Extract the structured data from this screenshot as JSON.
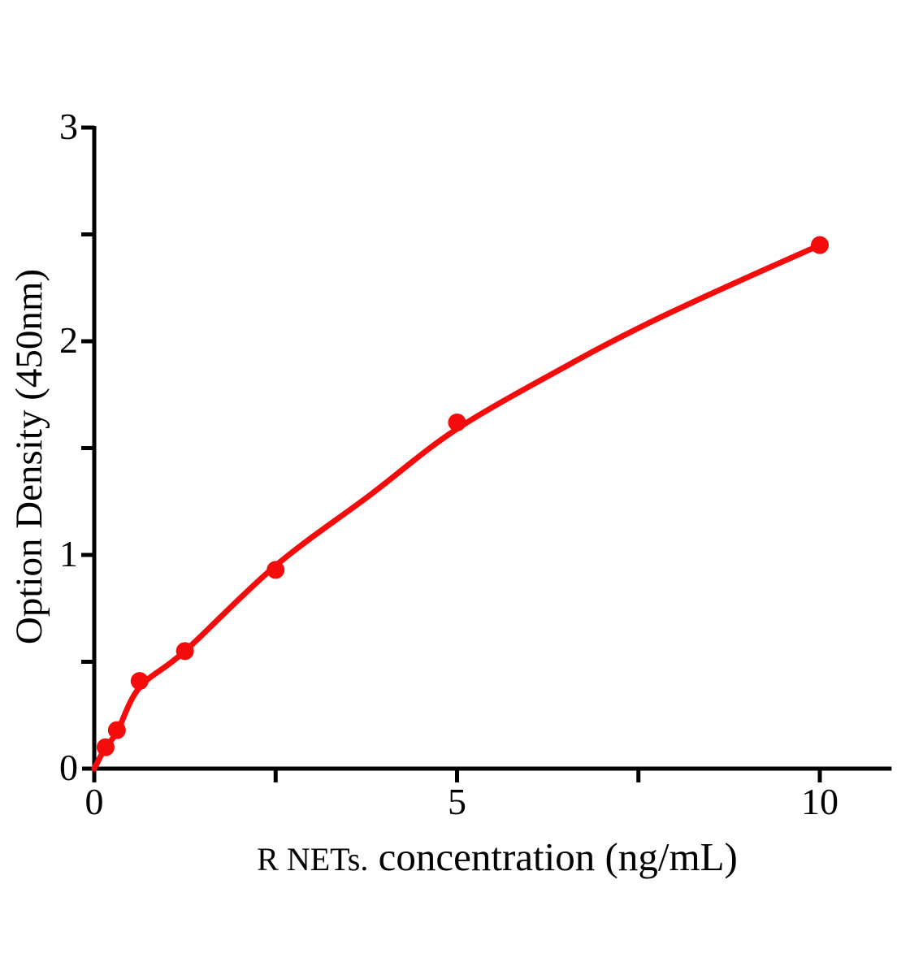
{
  "chart_data": {
    "type": "scatter",
    "title": "",
    "xlabel": "R NETs. concentration（ng/mL）",
    "xlabel_prefix": "R NETs.",
    "xlabel_main": "concentration（ng/mL）",
    "ylabel": "Option Density（450nm）",
    "xlim": [
      0,
      11
    ],
    "ylim": [
      0,
      3
    ],
    "x_ticks": [
      0,
      5,
      10
    ],
    "x_minor_ticks": [
      2.5,
      7.5
    ],
    "y_ticks": [
      0,
      1,
      2,
      3
    ],
    "y_minor_ticks": [
      0.5,
      1.5,
      2.5
    ],
    "grid": false,
    "legend_position": "none",
    "colors": {
      "series": "#f40b0b",
      "axis": "#000000",
      "background": "#ffffff"
    },
    "series": [
      {
        "name": "standard-points",
        "type": "scatter",
        "x": [
          0.156,
          0.312,
          0.625,
          1.25,
          2.5,
          5,
          10
        ],
        "y": [
          0.1,
          0.18,
          0.41,
          0.55,
          0.93,
          1.62,
          2.45
        ]
      },
      {
        "name": "fit-curve",
        "type": "line",
        "x": [
          0,
          0.156,
          0.312,
          0.625,
          1.25,
          2.5,
          3.8,
          5,
          6.54,
          7.55,
          8.55,
          10
        ],
        "y": [
          0,
          0.1,
          0.17,
          0.38,
          0.55,
          0.95,
          1.28,
          1.59,
          1.89,
          2.07,
          2.23,
          2.45
        ]
      }
    ]
  }
}
